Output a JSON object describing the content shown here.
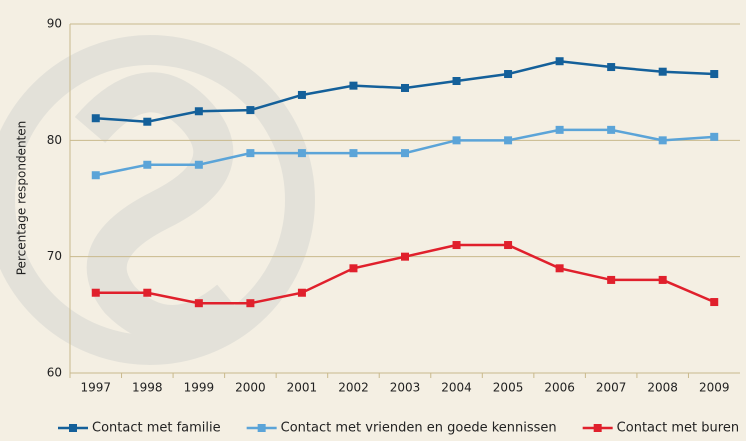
{
  "chart_data": {
    "type": "line",
    "y_label": "Percentage respondenten",
    "categories": [
      "1997",
      "1998",
      "1999",
      "2000",
      "2001",
      "2002",
      "2003",
      "2004",
      "2005",
      "2006",
      "2007",
      "2008",
      "2009"
    ],
    "series": [
      {
        "name": "Contact met familie",
        "color": "#14609a",
        "values": [
          81.9,
          81.6,
          82.5,
          82.6,
          83.9,
          84.7,
          84.5,
          85.1,
          85.7,
          86.8,
          86.3,
          85.9,
          85.7
        ]
      },
      {
        "name": "Contact met vrienden en goede kennissen",
        "color": "#5ba4d8",
        "values": [
          77.0,
          77.9,
          77.9,
          78.9,
          78.9,
          78.9,
          78.9,
          80.0,
          80.0,
          80.9,
          80.9,
          80.0,
          80.3
        ]
      },
      {
        "name": "Contact met buren",
        "color": "#e0202c",
        "values": [
          66.9,
          66.9,
          66.0,
          66.0,
          66.9,
          69.0,
          70.0,
          71.0,
          71.0,
          69.0,
          68.0,
          68.0,
          66.1
        ]
      }
    ],
    "ylim": [
      60,
      90
    ],
    "yticks": [
      60,
      70,
      80,
      90
    ],
    "grid": true
  }
}
